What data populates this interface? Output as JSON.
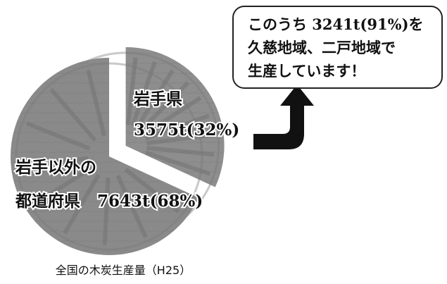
{
  "chart_data": {
    "type": "pie",
    "title": "全国の木炭生産量（H25）",
    "categories": [
      "岩手県",
      "岩手以外の都道府県"
    ],
    "values": [
      3575,
      7643
    ],
    "value_labels": [
      "3575t(32%)",
      "7643t(68%)"
    ],
    "colors": [
      "#8e8e8e",
      "#8a8a8a"
    ],
    "exploded": [
      true,
      false
    ],
    "annotation": [
      "このうち 3241t(91%)を",
      "久慈地域、二戸地域で",
      "生産しています！"
    ]
  }
}
